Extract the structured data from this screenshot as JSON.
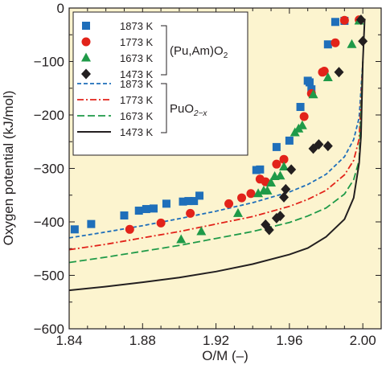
{
  "chart_data": {
    "type": "scatter",
    "xlabel": "O/M (–)",
    "ylabel": "Oxygen potential (kJ/mol)",
    "xlim": [
      1.84,
      2.01
    ],
    "ylim": [
      -600,
      0
    ],
    "xticks": [
      1.84,
      1.88,
      1.92,
      1.96,
      2.0
    ],
    "xtick_labels": [
      "1.84",
      "1.88",
      "1.92",
      "1.96",
      "2.00"
    ],
    "yticks": [
      0,
      -100,
      -200,
      -300,
      -400,
      -500,
      -600
    ],
    "ytick_labels": [
      "0",
      "−100",
      "−200",
      "−300",
      "−400",
      "−500",
      "−600"
    ],
    "background_color": "#fcf4cf",
    "legend_position": "top-left",
    "group_labels": {
      "points_main": "(Pu,Am)O",
      "points_sub": "2",
      "lines_main": "PuO",
      "lines_sub": "2−x"
    },
    "point_series": [
      {
        "name": "1873 K",
        "marker": "square",
        "color": "#1f6fba",
        "points": [
          [
            1.843,
            -414
          ],
          [
            1.852,
            -404
          ],
          [
            1.87,
            -388
          ],
          [
            1.878,
            -379
          ],
          [
            1.882,
            -376
          ],
          [
            1.886,
            -375
          ],
          [
            1.893,
            -366
          ],
          [
            1.902,
            -362
          ],
          [
            1.905,
            -361
          ],
          [
            1.908,
            -361
          ],
          [
            1.911,
            -351
          ],
          [
            1.942,
            -303
          ],
          [
            1.944,
            -302
          ],
          [
            1.953,
            -260
          ],
          [
            1.96,
            -248
          ],
          [
            1.966,
            -185
          ],
          [
            1.97,
            -136
          ],
          [
            1.971,
            -139
          ],
          [
            1.972,
            -152
          ],
          [
            1.981,
            -68
          ],
          [
            1.985,
            -26
          ],
          [
            1.99,
            -24
          ]
        ]
      },
      {
        "name": "1773 K",
        "marker": "circle",
        "color": "#e2231a",
        "points": [
          [
            1.873,
            -414
          ],
          [
            1.89,
            -402
          ],
          [
            1.906,
            -384
          ],
          [
            1.927,
            -366
          ],
          [
            1.934,
            -355
          ],
          [
            1.939,
            -347
          ],
          [
            1.944,
            -320
          ],
          [
            1.947,
            -325
          ],
          [
            1.953,
            -292
          ],
          [
            1.957,
            -283
          ],
          [
            1.968,
            -203
          ],
          [
            1.972,
            -160
          ],
          [
            1.978,
            -120
          ],
          [
            1.979,
            -118
          ],
          [
            1.985,
            -65
          ],
          [
            1.99,
            -23
          ],
          [
            1.998,
            -22
          ]
        ]
      },
      {
        "name": "1673 K",
        "marker": "triangle",
        "color": "#1f9a48",
        "points": [
          [
            1.901,
            -433
          ],
          [
            1.912,
            -418
          ],
          [
            1.932,
            -384
          ],
          [
            1.943,
            -347
          ],
          [
            1.946,
            -342
          ],
          [
            1.948,
            -342
          ],
          [
            1.95,
            -327
          ],
          [
            1.952,
            -315
          ],
          [
            1.955,
            -314
          ],
          [
            1.957,
            -297
          ],
          [
            1.963,
            -233
          ],
          [
            1.965,
            -226
          ],
          [
            1.967,
            -220
          ],
          [
            1.973,
            -162
          ],
          [
            1.981,
            -130
          ],
          [
            1.994,
            -68
          ],
          [
            1.998,
            -24
          ]
        ]
      },
      {
        "name": "1473 K",
        "marker": "diamond",
        "color": "#231f20",
        "points": [
          [
            1.947,
            -405
          ],
          [
            1.949,
            -415
          ],
          [
            1.953,
            -393
          ],
          [
            1.955,
            -389
          ],
          [
            1.957,
            -354
          ],
          [
            1.958,
            -339
          ],
          [
            1.961,
            -302
          ],
          [
            1.973,
            -263
          ],
          [
            1.976,
            -255
          ],
          [
            1.981,
            -258
          ],
          [
            1.987,
            -120
          ],
          [
            1.999,
            -22
          ],
          [
            2.0,
            -62
          ]
        ]
      }
    ],
    "line_series": [
      {
        "name": "1873 K",
        "style": "dashed-short",
        "color": "#1f6fba",
        "points": [
          [
            1.84,
            -430
          ],
          [
            1.86,
            -419
          ],
          [
            1.88,
            -407
          ],
          [
            1.9,
            -394
          ],
          [
            1.92,
            -380
          ],
          [
            1.94,
            -364
          ],
          [
            1.96,
            -344
          ],
          [
            1.97,
            -330
          ],
          [
            1.98,
            -311
          ],
          [
            1.99,
            -278
          ],
          [
            1.995,
            -246
          ],
          [
            1.998,
            -205
          ],
          [
            2.0,
            -100
          ]
        ]
      },
      {
        "name": "1773 K",
        "style": "dash-dot",
        "color": "#e2231a",
        "points": [
          [
            1.84,
            -452
          ],
          [
            1.86,
            -442
          ],
          [
            1.88,
            -430
          ],
          [
            1.9,
            -418
          ],
          [
            1.92,
            -404
          ],
          [
            1.94,
            -390
          ],
          [
            1.96,
            -371
          ],
          [
            1.97,
            -358
          ],
          [
            1.98,
            -341
          ],
          [
            1.99,
            -312
          ],
          [
            1.995,
            -285
          ],
          [
            1.998,
            -245
          ],
          [
            2.0,
            -100
          ]
        ]
      },
      {
        "name": "1673 K",
        "style": "dashed-long",
        "color": "#1f9a48",
        "points": [
          [
            1.84,
            -476
          ],
          [
            1.86,
            -466
          ],
          [
            1.88,
            -455
          ],
          [
            1.9,
            -444
          ],
          [
            1.92,
            -431
          ],
          [
            1.94,
            -418
          ],
          [
            1.96,
            -401
          ],
          [
            1.97,
            -389
          ],
          [
            1.98,
            -374
          ],
          [
            1.99,
            -348
          ],
          [
            1.995,
            -321
          ],
          [
            1.998,
            -285
          ],
          [
            2.0,
            -100
          ]
        ]
      },
      {
        "name": "1473 K",
        "style": "solid",
        "color": "#231f20",
        "points": [
          [
            1.84,
            -528
          ],
          [
            1.86,
            -521
          ],
          [
            1.88,
            -513
          ],
          [
            1.9,
            -504
          ],
          [
            1.92,
            -493
          ],
          [
            1.94,
            -479
          ],
          [
            1.96,
            -461
          ],
          [
            1.97,
            -449
          ],
          [
            1.98,
            -428
          ],
          [
            1.99,
            -395
          ],
          [
            1.995,
            -355
          ],
          [
            1.998,
            -290
          ],
          [
            1.999,
            -240
          ],
          [
            2.0,
            -100
          ],
          [
            2.001,
            -20
          ]
        ]
      }
    ]
  }
}
